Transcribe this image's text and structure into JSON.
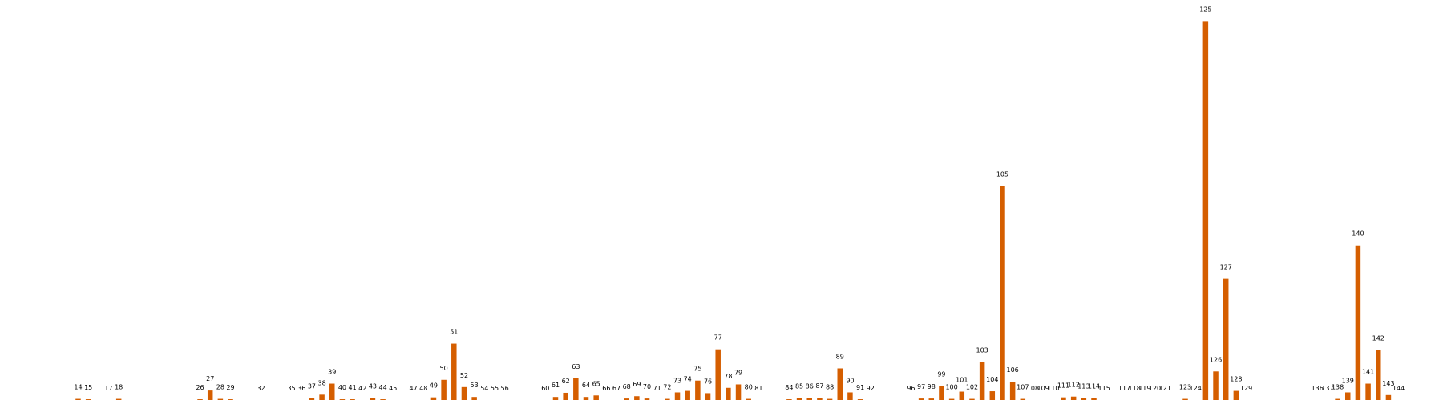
{
  "chart_data": {
    "type": "bar",
    "color": "#d55e00",
    "categories": [
      "14",
      "15",
      "17",
      "18",
      "26",
      "27",
      "28",
      "29",
      "32",
      "35",
      "36",
      "37",
      "38",
      "39",
      "40",
      "41",
      "42",
      "43",
      "44",
      "45",
      "47",
      "48",
      "49",
      "50",
      "51",
      "52",
      "53",
      "54",
      "55",
      "56",
      "60",
      "61",
      "62",
      "63",
      "64",
      "65",
      "66",
      "67",
      "68",
      "69",
      "70",
      "71",
      "72",
      "73",
      "74",
      "75",
      "76",
      "77",
      "78",
      "79",
      "80",
      "81",
      "84",
      "85",
      "86",
      "87",
      "88",
      "89",
      "90",
      "91",
      "92",
      "96",
      "97",
      "98",
      "99",
      "100",
      "101",
      "102",
      "103",
      "104",
      "105",
      "106",
      "107",
      "108",
      "109",
      "110",
      "111",
      "112",
      "113",
      "114",
      "115",
      "117",
      "118",
      "119",
      "120",
      "121",
      "123",
      "124",
      "125",
      "126",
      "127",
      "128",
      "129",
      "136",
      "137",
      "138",
      "139",
      "140",
      "141",
      "142",
      "143",
      "144"
    ],
    "values": [
      0.3,
      0.2,
      0,
      0.3,
      0.2,
      2.5,
      0.3,
      0.2,
      0,
      0,
      0,
      0.5,
      1.4,
      4.3,
      0.2,
      0.2,
      0,
      0.5,
      0.2,
      0,
      0,
      0,
      0.7,
      5.3,
      14.8,
      3.4,
      0.8,
      0,
      0,
      0,
      0,
      0.8,
      1.9,
      5.7,
      0.8,
      1.2,
      0,
      0,
      0.4,
      1,
      0.4,
      0,
      0.3,
      2,
      2.4,
      5.1,
      1.8,
      13.3,
      3.2,
      4.1,
      0.3,
      0,
      0.2,
      0.5,
      0.5,
      0.6,
      0.3,
      8.3,
      2,
      0.2,
      0,
      0,
      0.4,
      0.4,
      3.7,
      0.3,
      2.2,
      0.3,
      10,
      2.3,
      56.2,
      4.8,
      0.3,
      0,
      0,
      0,
      0.7,
      0.9,
      0.5,
      0.5,
      0,
      0,
      0,
      0,
      0,
      0,
      0.3,
      0,
      99.5,
      7.5,
      31.8,
      2.4,
      0,
      0,
      0,
      0.3,
      2,
      40.6,
      4.3,
      13.1,
      1.3,
      0
    ],
    "title": "",
    "xlabel": "",
    "ylabel": "",
    "x_range": [
      11,
      145
    ],
    "ylim": [
      0,
      100
    ],
    "grid": false,
    "axes_visible": false
  }
}
